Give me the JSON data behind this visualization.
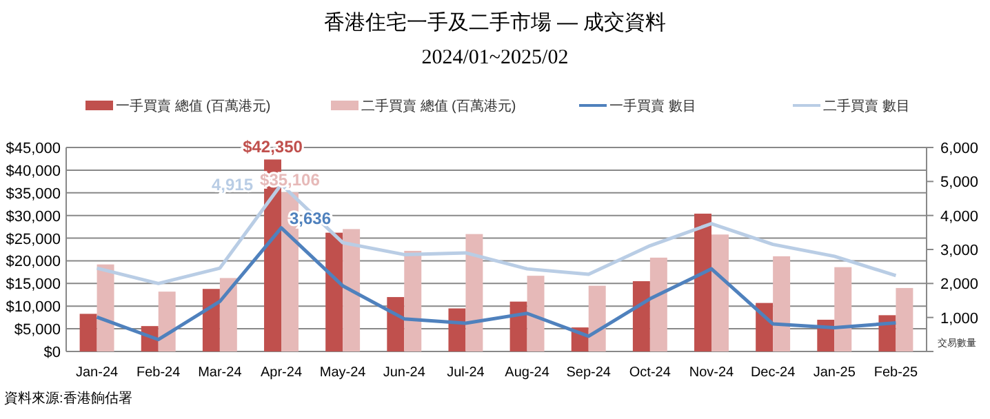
{
  "chart_data": {
    "type": "bar",
    "title": "香港住宅一手及二手市場 — 成交資料",
    "subtitle": "2024/01~2025/02",
    "categories": [
      "Jan-24",
      "Feb-24",
      "Mar-24",
      "Apr-24",
      "May-24",
      "Jun-24",
      "Jul-24",
      "Aug-24",
      "Sep-24",
      "Oct-24",
      "Nov-24",
      "Dec-24",
      "Jan-25",
      "Feb-25"
    ],
    "series": [
      {
        "name": "一手買賣 總值 (百萬港元)",
        "color": "#c0504d",
        "values": [
          8300,
          5600,
          13800,
          42350,
          26200,
          12000,
          9500,
          11000,
          5300,
          15500,
          30400,
          10700,
          7000,
          8000
        ],
        "value_labels": [
          null,
          null,
          null,
          "$42,350",
          null,
          null,
          null,
          null,
          null,
          null,
          null,
          null,
          null,
          null
        ]
      },
      {
        "name": "二手買賣 總值 (百萬港元)",
        "color": "#e6b9b8",
        "values": [
          19200,
          13200,
          16200,
          35106,
          27000,
          22200,
          25900,
          16700,
          14500,
          20700,
          25800,
          21000,
          18600,
          14000
        ],
        "value_labels": [
          null,
          null,
          null,
          "$35,106",
          null,
          null,
          null,
          null,
          null,
          null,
          null,
          null,
          null,
          null
        ]
      },
      {
        "name": "一手買賣 數目",
        "type": "line",
        "axis": "y2",
        "color": "#4f81bd",
        "values": [
          1010,
          350,
          1470,
          3636,
          1930,
          960,
          830,
          1120,
          450,
          1550,
          2430,
          810,
          700,
          840
        ],
        "value_labels": [
          null,
          null,
          null,
          "3,636",
          null,
          null,
          null,
          null,
          null,
          null,
          null,
          null,
          null,
          null
        ]
      },
      {
        "name": "二手買賣 數目",
        "type": "line",
        "axis": "y2",
        "color": "#b9cde5",
        "values": [
          2450,
          2000,
          2450,
          4915,
          3200,
          2850,
          2900,
          2430,
          2270,
          3110,
          3760,
          3150,
          2800,
          2230
        ],
        "value_labels": [
          null,
          null,
          null,
          "4,915",
          null,
          null,
          null,
          null,
          null,
          null,
          null,
          null,
          null,
          null
        ]
      }
    ],
    "ylim": [
      0,
      45000
    ],
    "yticks": [
      {
        "value": 0,
        "label": "$0"
      },
      {
        "value": 5000,
        "label": "$5,000"
      },
      {
        "value": 10000,
        "label": "$10,000"
      },
      {
        "value": 15000,
        "label": "$15,000"
      },
      {
        "value": 20000,
        "label": "$20,000"
      },
      {
        "value": 25000,
        "label": "$25,000"
      },
      {
        "value": 30000,
        "label": "$30,000"
      },
      {
        "value": 35000,
        "label": "$35,000"
      },
      {
        "value": 40000,
        "label": "$40,000"
      },
      {
        "value": 45000,
        "label": "$45,000"
      }
    ],
    "y2lim": [
      0,
      6000
    ],
    "y2ticks": [
      {
        "value": 0,
        "label": null
      },
      {
        "value": 1000,
        "label": "1,000"
      },
      {
        "value": 2000,
        "label": "2,000"
      },
      {
        "value": 3000,
        "label": "3,000"
      },
      {
        "value": 4000,
        "label": "4,000"
      },
      {
        "value": 5000,
        "label": "5,000"
      },
      {
        "value": 6000,
        "label": "6,000"
      }
    ],
    "y2label": "交易數量",
    "grid": "y",
    "legend": "top",
    "annotations": [
      "資料來源:香港餉估署"
    ]
  }
}
